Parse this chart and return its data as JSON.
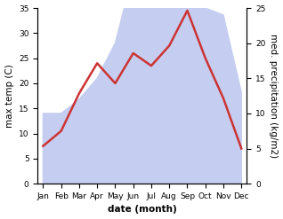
{
  "months": [
    "Jan",
    "Feb",
    "Mar",
    "Apr",
    "May",
    "Jun",
    "Jul",
    "Aug",
    "Sep",
    "Oct",
    "Nov",
    "Dec"
  ],
  "temperature": [
    7.5,
    10.5,
    18.0,
    24.0,
    20.0,
    26.0,
    23.5,
    27.5,
    34.5,
    25.0,
    17.0,
    7.0
  ],
  "precipitation": [
    10,
    10,
    12,
    15,
    20,
    30,
    25,
    32,
    32,
    25,
    24,
    13
  ],
  "temp_color": "#cc3333",
  "precip_color": "#c5cef0",
  "temp_ylim": [
    0,
    35
  ],
  "precip_ylim": [
    0,
    25
  ],
  "temp_yticks": [
    0,
    5,
    10,
    15,
    20,
    25,
    30,
    35
  ],
  "precip_yticks": [
    0,
    5,
    10,
    15,
    20,
    25
  ],
  "xlabel": "date (month)",
  "ylabel_left": "max temp (C)",
  "ylabel_right": "med. precipitation (kg/m2)",
  "background_color": "#ffffff",
  "label_fontsize": 7.5
}
